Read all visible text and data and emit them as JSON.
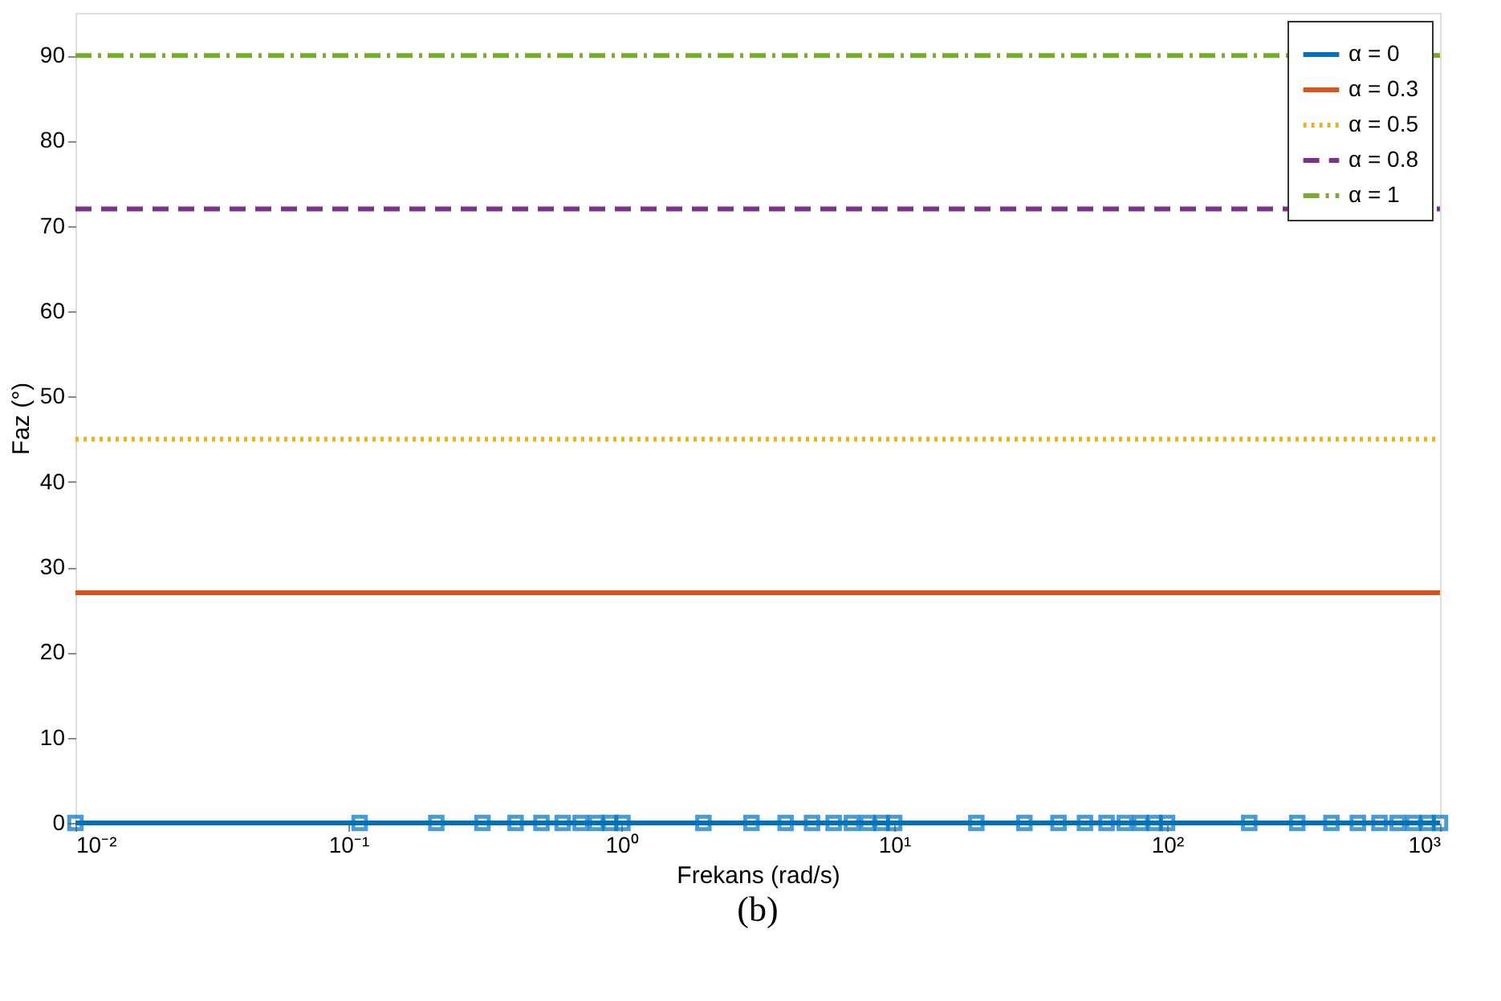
{
  "chart_data": {
    "type": "line",
    "xlabel": "Frekans (rad/s)",
    "ylabel": "Faz (°)",
    "log": "x",
    "xlim": [
      0.01,
      1000
    ],
    "ylim": [
      0,
      95
    ],
    "xticks": [
      {
        "value": 0.01,
        "label": "10⁻²"
      },
      {
        "value": 0.1,
        "label": "10⁻¹"
      },
      {
        "value": 1,
        "label": "10⁰"
      },
      {
        "value": 10,
        "label": "10¹"
      },
      {
        "value": 100,
        "label": "10²"
      },
      {
        "value": 1000,
        "label": "10³"
      }
    ],
    "yticks": [
      0,
      10,
      20,
      30,
      40,
      50,
      60,
      70,
      80,
      90
    ],
    "grid": false,
    "legend": "top right",
    "annotations": [
      "(b)"
    ],
    "series": [
      {
        "name": "α = 0",
        "color": "#0072bd",
        "marker": "square",
        "line_style": "solid",
        "x": [
          0.01,
          0.11,
          0.21,
          0.31,
          0.41,
          0.51,
          0.61,
          0.71,
          0.81,
          0.91,
          1.01,
          2,
          3,
          4,
          5,
          6,
          7,
          8,
          9,
          10,
          20,
          30,
          40,
          50,
          60,
          70,
          80,
          90,
          100,
          200,
          300,
          400,
          500,
          600,
          700,
          800,
          900,
          1000
        ],
        "values": [
          0,
          0,
          0,
          0,
          0,
          0,
          0,
          0,
          0,
          0,
          0,
          0,
          0,
          0,
          0,
          0,
          0,
          0,
          0,
          0,
          0,
          0,
          0,
          0,
          0,
          0,
          0,
          0,
          0,
          0,
          0,
          0,
          0,
          0,
          0,
          0,
          0,
          0
        ]
      },
      {
        "name": "α = 0.3",
        "color": "#d95319",
        "marker": "none",
        "line_style": "solid",
        "x": [
          0.01,
          1000
        ],
        "values": [
          27,
          27
        ]
      },
      {
        "name": "α = 0.5",
        "color": "#edb120",
        "marker": "none",
        "line_style": "dotted",
        "x": [
          0.01,
          1000
        ],
        "values": [
          45,
          45
        ]
      },
      {
        "name": "α = 0.8",
        "color": "#7e2f8e",
        "marker": "none",
        "line_style": "dashed",
        "x": [
          0.01,
          1000
        ],
        "values": [
          72,
          72
        ]
      },
      {
        "name": "α = 1",
        "color": "#77ac30",
        "marker": "none",
        "line_style": "dashdot",
        "x": [
          0.01,
          1000
        ],
        "values": [
          90,
          90
        ]
      }
    ]
  }
}
